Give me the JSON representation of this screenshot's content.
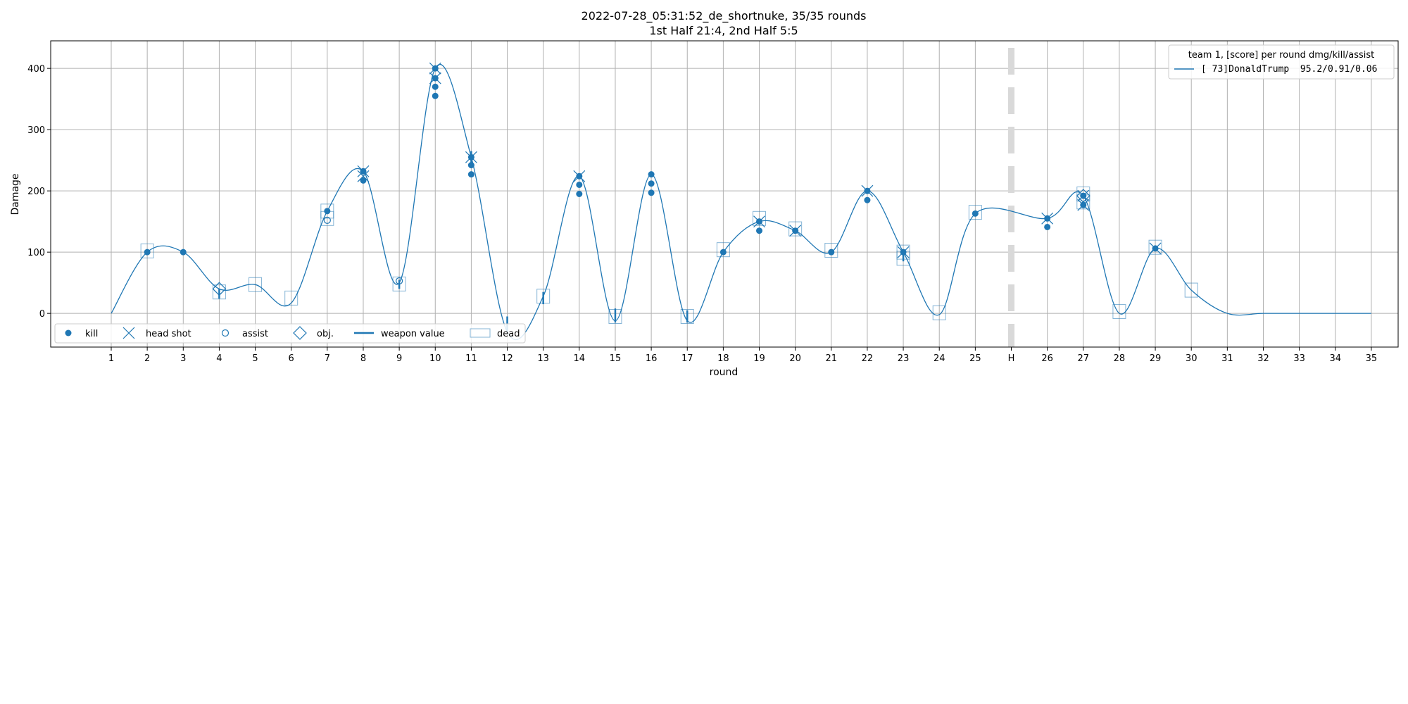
{
  "chart_data": {
    "type": "line",
    "title": "2022-07-28_05:31:52_de_shortnuke, 35/35 rounds",
    "subtitle": "1st Half 21:4, 2nd Half 5:5",
    "xlabel": "round",
    "ylabel": "Damage",
    "ylim": [
      -55,
      445
    ],
    "yticks": [
      0,
      100,
      200,
      300,
      400
    ],
    "x_ticks": [
      "1",
      "2",
      "3",
      "4",
      "5",
      "6",
      "7",
      "8",
      "9",
      "10",
      "11",
      "12",
      "13",
      "14",
      "15",
      "16",
      "17",
      "18",
      "19",
      "20",
      "21",
      "22",
      "23",
      "24",
      "25",
      "H",
      "26",
      "27",
      "28",
      "29",
      "30",
      "31",
      "32",
      "33",
      "34",
      "35"
    ],
    "halftime_label": "H",
    "grid": true,
    "legend_position": "top-right",
    "legend_title": "team 1, [score] per round dmg/kill/assist",
    "series": [
      {
        "name": "[ 73]DonaldTrump  95.2/0.91/0.06",
        "color": "#1f77b4",
        "rounds": [
          1,
          2,
          3,
          4,
          5,
          6,
          7,
          8,
          9,
          10,
          11,
          12,
          13,
          14,
          15,
          16,
          17,
          18,
          19,
          20,
          21,
          22,
          23,
          24,
          25,
          26,
          27,
          28,
          29,
          30,
          31,
          32,
          33,
          34,
          35
        ],
        "damage": [
          0,
          100,
          100,
          40,
          47,
          17,
          167,
          232,
          50,
          400,
          255,
          -30,
          28,
          224,
          -12,
          227,
          -12,
          100,
          150,
          135,
          100,
          200,
          100,
          -2,
          163,
          155,
          192,
          0,
          106,
          38,
          0,
          0,
          0,
          0,
          0
        ],
        "kills": [
          [],
          [
            100
          ],
          [
            100
          ],
          [],
          [],
          [],
          [
            167
          ],
          [
            232,
            217
          ],
          [],
          [
            400,
            384,
            370,
            355
          ],
          [
            255,
            242,
            227
          ],
          [],
          [],
          [
            224,
            210,
            195
          ],
          [],
          [
            227,
            212,
            197
          ],
          [],
          [
            100
          ],
          [
            150,
            135
          ],
          [
            135
          ],
          [
            100
          ],
          [
            200,
            185
          ],
          [
            100
          ],
          [],
          [
            163
          ],
          [
            155,
            141
          ],
          [
            192,
            177
          ],
          [],
          [
            106
          ],
          [],
          [],
          [],
          [],
          [],
          []
        ],
        "headshots": [
          [],
          [],
          [],
          [],
          [],
          [],
          [],
          [
            232,
            224
          ],
          [],
          [
            400,
            384
          ],
          [
            255
          ],
          [],
          [],
          [
            224
          ],
          [],
          [],
          [],
          [],
          [
            150
          ],
          [
            135
          ],
          [],
          [
            200
          ],
          [
            100
          ],
          [],
          [],
          [
            155
          ],
          [
            192,
            177
          ],
          [],
          [
            106
          ],
          [],
          [],
          [],
          [],
          [],
          []
        ],
        "assists": [
          [],
          [],
          [],
          [],
          [],
          [],
          [
            152
          ],
          [],
          [
            53
          ],
          [],
          [],
          [],
          [],
          [],
          [],
          [],
          [],
          [],
          [],
          [],
          [],
          [],
          [],
          [],
          [],
          [],
          [],
          [],
          [],
          [],
          [],
          [],
          [],
          [],
          []
        ],
        "objectives": [
          [],
          [],
          [],
          [
            40
          ],
          [],
          [],
          [],
          [],
          [],
          [],
          [],
          [],
          [],
          [],
          [],
          [],
          [],
          [],
          [],
          [],
          [],
          [],
          [],
          [],
          [],
          [],
          [
            192
          ],
          [],
          [],
          [],
          [],
          [],
          [],
          [],
          []
        ],
        "dead": [
          [],
          [
            102
          ],
          [],
          [
            35
          ],
          [
            47
          ],
          [
            25
          ],
          [
            167,
            155
          ],
          [],
          [
            48
          ],
          [],
          [],
          [],
          [
            28
          ],
          [],
          [
            -5
          ],
          [],
          [
            -5
          ],
          [
            104
          ],
          [
            155
          ],
          [
            138
          ],
          [
            103
          ],
          [],
          [
            100,
            90
          ],
          [
            1
          ],
          [
            165
          ],
          [],
          [
            195,
            182
          ],
          [
            3
          ],
          [
            108
          ],
          [
            38
          ],
          [],
          [],
          [],
          [],
          []
        ],
        "weapon_value": [
          [],
          [],
          [],
          [
            [
              24,
              40
            ]
          ],
          [],
          [],
          [],
          [],
          [
            [
              40,
              55
            ]
          ],
          [],
          [
            [
              245,
              265
            ]
          ],
          [
            [
              -30,
              -5
            ]
          ],
          [
            [
              15,
              35
            ]
          ],
          [],
          [
            [
              -15,
              8
            ]
          ],
          [],
          [
            [
              -15,
              5
            ]
          ],
          [],
          [],
          [],
          [],
          [],
          [
            [
              85,
              100
            ]
          ],
          [],
          [],
          [],
          [],
          [],
          [],
          [],
          [],
          [],
          [],
          [],
          []
        ]
      }
    ],
    "legend_markers": [
      {
        "label": "kill",
        "icon": "filled-circle"
      },
      {
        "label": "head shot",
        "icon": "x-mark"
      },
      {
        "label": "assist",
        "icon": "hollow-circle"
      },
      {
        "label": "obj.",
        "icon": "diamond"
      },
      {
        "label": "weapon value",
        "icon": "thick-line"
      },
      {
        "label": "dead",
        "icon": "hollow-square"
      }
    ]
  }
}
